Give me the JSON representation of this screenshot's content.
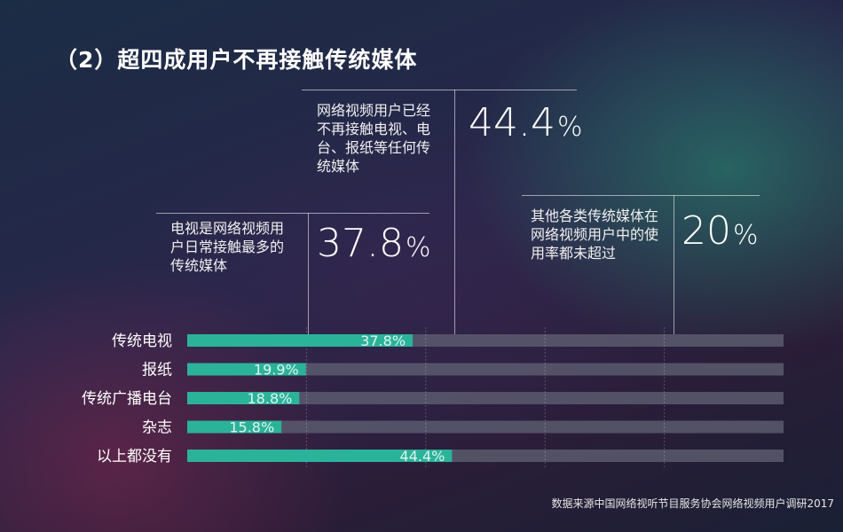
{
  "title": "（2）超四成用户不再接触传统媒体",
  "callouts": [
    {
      "text": "网络视频用户已经不再接触电视、电台、报纸等任何传统媒体",
      "number": "44.4",
      "unit": "%"
    },
    {
      "text": "电视是网络视频用户日常接触最多的传统媒体",
      "number": "37.8",
      "unit": "%"
    },
    {
      "text": "其他各类传统媒体在网络视频用户中的使用率都未超过",
      "number": "20",
      "unit": "%"
    }
  ],
  "chart_data": {
    "type": "bar",
    "orientation": "horizontal",
    "categories": [
      "传统电视",
      "报纸",
      "传统广播电台",
      "杂志",
      "以上都没有"
    ],
    "values": [
      37.8,
      19.9,
      18.8,
      15.8,
      44.4
    ],
    "data_labels": [
      "37.8%",
      "19.9%",
      "18.8%",
      "15.8%",
      "44.4%"
    ],
    "xlim": [
      0,
      100
    ],
    "grid": true,
    "colors": {
      "bar": "#2bb39a",
      "track": "#5a5a6e",
      "label": "#ffffff"
    }
  },
  "source": "数据来源中国网络视听节目服务协会网络视频用户调研2017"
}
